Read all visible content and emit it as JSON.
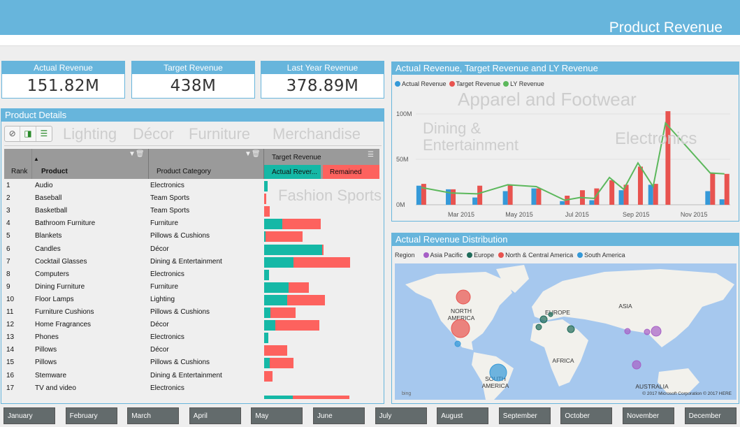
{
  "header": {
    "title": "Product Revenue"
  },
  "watermarks": [
    "Apparel and Footwear",
    "Electronics",
    "Furniture",
    "Lighting",
    "Dining & Entertainment",
    "Fashion Sports",
    "Décor",
    "Merchandise"
  ],
  "kpis": [
    {
      "label": "Actual Revenue",
      "value": "151.82M"
    },
    {
      "label": "Target Revenue",
      "value": "438M"
    },
    {
      "label": "Last Year Revenue",
      "value": "378.89M"
    }
  ],
  "product_details": {
    "title": "Product Details",
    "toolbar": [
      {
        "icon": "clear-filter-icon"
      },
      {
        "icon": "add-column-icon"
      },
      {
        "icon": "add-row-icon"
      }
    ],
    "columns": {
      "rank": "Rank",
      "product": "Product",
      "category": "Product Category",
      "target": "Target Revenue",
      "actual": "Actual Rever...",
      "remained": "Remained"
    },
    "colors": {
      "actual": "#15b8a6",
      "remained": "#fd625e"
    },
    "rows": [
      {
        "rank": "1",
        "product": "Audio",
        "category": "Electronics",
        "actual": 5,
        "remained": 0
      },
      {
        "rank": "2",
        "product": "Baseball",
        "category": "Team Sports",
        "actual": 0,
        "remained": 3
      },
      {
        "rank": "3",
        "product": "Basketball",
        "category": "Team Sports",
        "actual": 0,
        "remained": 8
      },
      {
        "rank": "4",
        "product": "Bathroom Furniture",
        "category": "Furniture",
        "actual": 26,
        "remained": 55
      },
      {
        "rank": "5",
        "product": "Blankets",
        "category": "Pillows & Cushions",
        "actual": 2,
        "remained": 53
      },
      {
        "rank": "6",
        "product": "Candles",
        "category": "Décor",
        "actual": 83,
        "remained": 2
      },
      {
        "rank": "7",
        "product": "Cocktail Glasses",
        "category": "Dining & Entertainment",
        "actual": 42,
        "remained": 81
      },
      {
        "rank": "8",
        "product": "Computers",
        "category": "Electronics",
        "actual": 7,
        "remained": 0
      },
      {
        "rank": "9",
        "product": "Dining Furniture",
        "category": "Furniture",
        "actual": 35,
        "remained": 29
      },
      {
        "rank": "10",
        "product": "Floor Lamps",
        "category": "Lighting",
        "actual": 33,
        "remained": 54
      },
      {
        "rank": "11",
        "product": "Furniture Cushions",
        "category": "Pillows & Cushions",
        "actual": 9,
        "remained": 36
      },
      {
        "rank": "12",
        "product": "Home Fragrances",
        "category": "Décor",
        "actual": 16,
        "remained": 63
      },
      {
        "rank": "13",
        "product": "Phones",
        "category": "Electronics",
        "actual": 6,
        "remained": 0
      },
      {
        "rank": "14",
        "product": "Pillows",
        "category": "Décor",
        "actual": 0,
        "remained": 33
      },
      {
        "rank": "15",
        "product": "Pillows",
        "category": "Pillows & Cushions",
        "actual": 8,
        "remained": 34
      },
      {
        "rank": "16",
        "product": "Stemware",
        "category": "Dining & Entertainment",
        "actual": 0,
        "remained": 12
      },
      {
        "rank": "17",
        "product": "TV and video",
        "category": "Electronics",
        "actual": 0,
        "remained": 0
      }
    ],
    "total": {
      "actual": 41,
      "remained": 81
    }
  },
  "chart_data": {
    "type": "bar",
    "title": "Actual Revenue, Target Revenue  and LY Revenue",
    "legend": [
      {
        "name": "Actual Revenue",
        "color": "#3599d8"
      },
      {
        "name": "Target Revenue",
        "color": "#e8534f"
      },
      {
        "name": "LY Revenue",
        "color": "#5cb85c"
      }
    ],
    "legend_position": "top-left",
    "yticks": [
      "0M",
      "50M",
      "100M"
    ],
    "ylim": [
      0,
      110
    ],
    "xticks": [
      {
        "label": "Mar 2015",
        "date": "2015-03-01"
      },
      {
        "label": "May 2015",
        "date": "2015-05-01"
      },
      {
        "label": "Jul 2015",
        "date": "2015-07-01"
      },
      {
        "label": "Sep 2015",
        "date": "2015-09-01"
      },
      {
        "label": "Nov 2015",
        "date": "2015-11-01"
      }
    ],
    "x": [
      "2015-01-18",
      "2015-02-18",
      "2015-03-18",
      "2015-04-19",
      "2015-05-19",
      "2015-06-18",
      "2015-07-04",
      "2015-07-19",
      "2015-08-04",
      "2015-08-19",
      "2015-09-03",
      "2015-09-19",
      "2015-10-02",
      "2015-11-18",
      "2015-12-03"
    ],
    "series": [
      {
        "name": "Actual Revenue",
        "type": "bar",
        "values": [
          21,
          17,
          8,
          15,
          18,
          4,
          0,
          5,
          0,
          16,
          0,
          22,
          0,
          15,
          6
        ]
      },
      {
        "name": "Target Revenue",
        "type": "bar",
        "values": [
          23,
          17,
          21,
          22,
          18,
          10,
          16,
          18,
          27,
          22,
          42,
          23,
          103,
          35,
          34
        ]
      },
      {
        "name": "LY Revenue",
        "type": "line",
        "values": [
          19,
          13,
          12,
          22,
          20,
          5,
          8,
          7,
          30,
          17,
          46,
          20,
          90,
          35,
          34
        ]
      }
    ],
    "grid": true
  },
  "map": {
    "title": "Actual Revenue Distribution",
    "legend_title": "Region",
    "regions": [
      {
        "name": "Asia Pacific",
        "color": "#a65fc6"
      },
      {
        "name": "Europe",
        "color": "#1f6b5a"
      },
      {
        "name": "North & Central America",
        "color": "#e8534f"
      },
      {
        "name": "South America",
        "color": "#3599d8"
      }
    ],
    "labels": [
      "NORTH AMERICA",
      "EUROPE",
      "ASIA",
      "AFRICA",
      "SOUTH AMERICA",
      "AUSTRALIA"
    ],
    "bubbles": [
      {
        "region": 2,
        "size": 10
      },
      {
        "region": 2,
        "size": 13
      },
      {
        "region": 3,
        "size": 4
      },
      {
        "region": 3,
        "size": 12
      },
      {
        "region": 1,
        "size": 5
      },
      {
        "region": 1,
        "size": 3
      },
      {
        "region": 1,
        "size": 4
      },
      {
        "region": 1,
        "size": 5
      },
      {
        "region": 0,
        "size": 4
      },
      {
        "region": 0,
        "size": 4
      },
      {
        "region": 0,
        "size": 7
      },
      {
        "region": 0,
        "size": 6
      }
    ],
    "brand": "bing",
    "copyright": "© 2017 Microsoft Corporation    © 2017 HERE"
  },
  "slicer": {
    "months": [
      "January",
      "February",
      "March",
      "April",
      "May",
      "June",
      "July",
      "August",
      "September",
      "October",
      "November",
      "December"
    ]
  }
}
